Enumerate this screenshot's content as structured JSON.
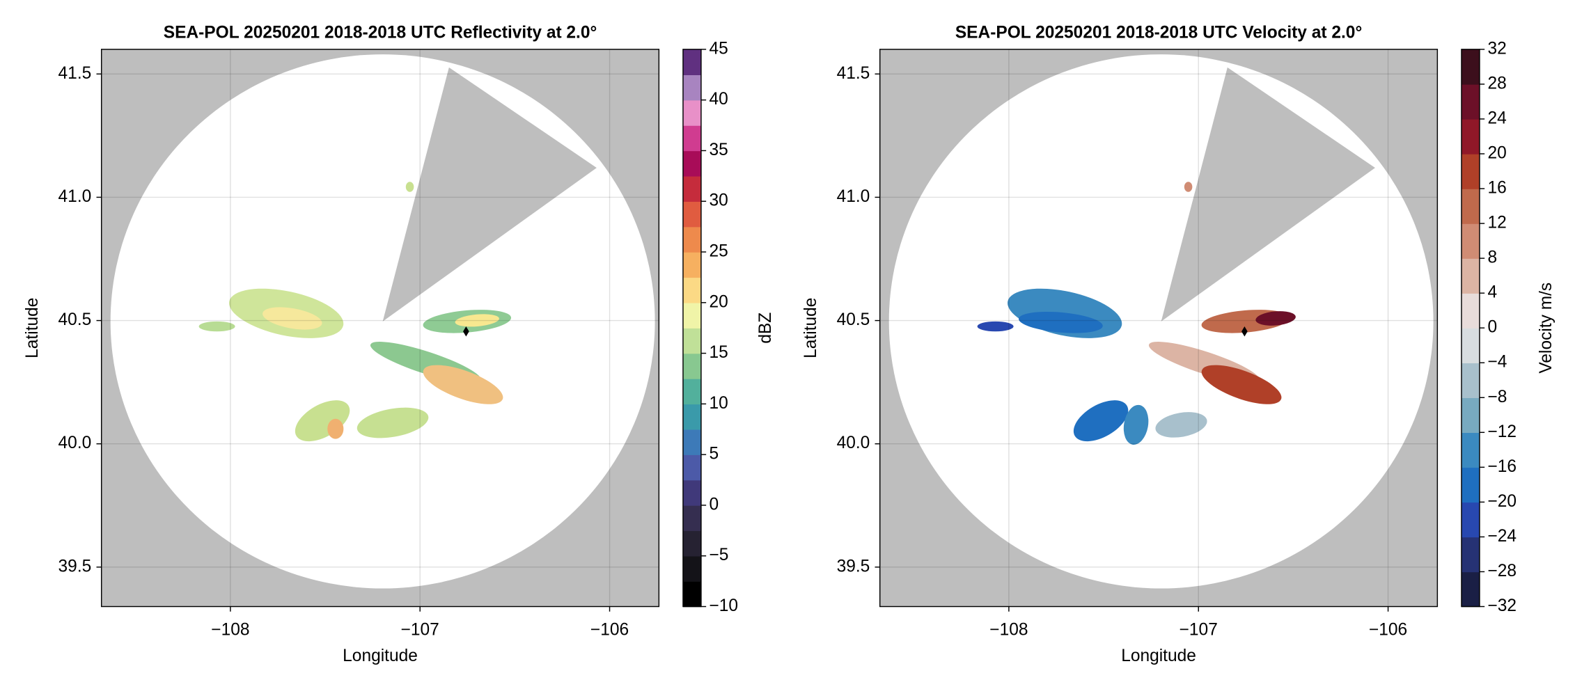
{
  "chart_data": [
    {
      "type": "radar",
      "title": "SEA-POL 20250201 2018-2018 UTC Reflectivity at 2.0°",
      "x_label": "Longitude",
      "y_label": "Latitude",
      "xlim": [
        -108.68,
        -105.74
      ],
      "ylim": [
        39.34,
        41.6
      ],
      "xticks": [
        {
          "value": -108,
          "label": "−108"
        },
        {
          "value": -107,
          "label": "−107"
        },
        {
          "value": -106,
          "label": "−106"
        }
      ],
      "yticks": [
        39.5,
        {
          "value": 40.0,
          "label": "40.0"
        },
        40.5,
        {
          "value": 41.0,
          "label": "41.0"
        },
        41.5
      ],
      "grid": true,
      "colorbar": {
        "label": "dBZ",
        "lim": [
          -10,
          45
        ],
        "ticks": [
          {
            "value": -10,
            "label": "−10"
          },
          {
            "value": -5,
            "label": "−5"
          },
          0,
          5,
          10,
          15,
          20,
          25,
          30,
          35,
          40,
          45
        ],
        "colors": [
          "#000000",
          "#141318",
          "#262232",
          "#352e50",
          "#40397a",
          "#4c5aa8",
          "#3d7ab8",
          "#3a9aaa",
          "#52b09c",
          "#88c890",
          "#c0e098",
          "#f0f4a8",
          "#fbd985",
          "#f6b060",
          "#ee8a4c",
          "#e05c40",
          "#c52c3c",
          "#a80c58",
          "#d03c90",
          "#e890c8",
          "#a884c0",
          "#603080"
        ]
      }
    },
    {
      "type": "radar",
      "title": "SEA-POL 20250201 2018-2018 UTC Velocity at 2.0°",
      "x_label": "Longitude",
      "y_label": "Latitude",
      "xlim": [
        -108.68,
        -105.74
      ],
      "ylim": [
        39.34,
        41.6
      ],
      "xticks": [
        {
          "value": -108,
          "label": "−108"
        },
        {
          "value": -107,
          "label": "−107"
        },
        {
          "value": -106,
          "label": "−106"
        }
      ],
      "yticks": [
        39.5,
        {
          "value": 40.0,
          "label": "40.0"
        },
        40.5,
        {
          "value": 41.0,
          "label": "41.0"
        },
        41.5
      ],
      "grid": true,
      "colorbar": {
        "label": "Velocity m/s",
        "lim": [
          -32,
          32
        ],
        "ticks": [
          {
            "value": -32,
            "label": "−32"
          },
          {
            "value": -28,
            "label": "−28"
          },
          {
            "value": -24,
            "label": "−24"
          },
          {
            "value": -20,
            "label": "−20"
          },
          {
            "value": -16,
            "label": "−16"
          },
          {
            "value": -12,
            "label": "−12"
          },
          {
            "value": -8,
            "label": "−8"
          },
          {
            "value": -4,
            "label": "−4"
          },
          0,
          4,
          8,
          12,
          16,
          20,
          24,
          28,
          32
        ],
        "colors": [
          "#1a1f45",
          "#263274",
          "#2848b0",
          "#1f6fc0",
          "#3b8ac0",
          "#78aac0",
          "#a8c0cc",
          "#d8dde0",
          "#e8dcda",
          "#dcb4a4",
          "#d08c74",
          "#c06a4c",
          "#b04028",
          "#901828",
          "#6c1028",
          "#3c0f1c"
        ]
      }
    }
  ]
}
